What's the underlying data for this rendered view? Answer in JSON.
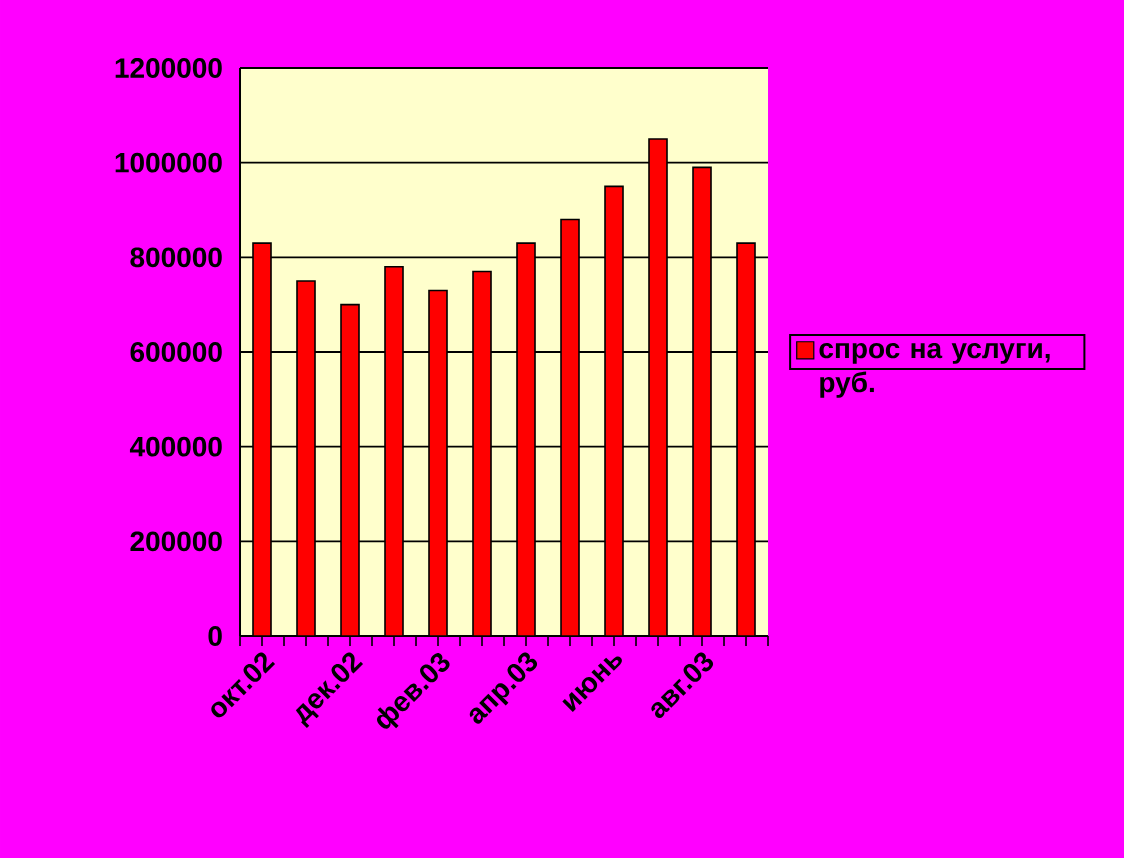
{
  "chart_data": {
    "type": "bar",
    "categories": [
      "окт.02",
      null,
      "дек.02",
      null,
      "фев.03",
      null,
      "апр.03",
      null,
      "июнь",
      null,
      "авг.03",
      null
    ],
    "series": [
      {
        "name": "спрос на услуги, руб.",
        "color": "#ff0000",
        "values": [
          830000,
          750000,
          700000,
          780000,
          730000,
          770000,
          830000,
          880000,
          950000,
          1050000,
          990000,
          830000
        ]
      }
    ],
    "ylim": [
      0,
      1200000
    ],
    "yticks": [
      0,
      200000,
      400000,
      600000,
      800000,
      1000000,
      1200000
    ],
    "grid": "y",
    "legend": "right"
  }
}
